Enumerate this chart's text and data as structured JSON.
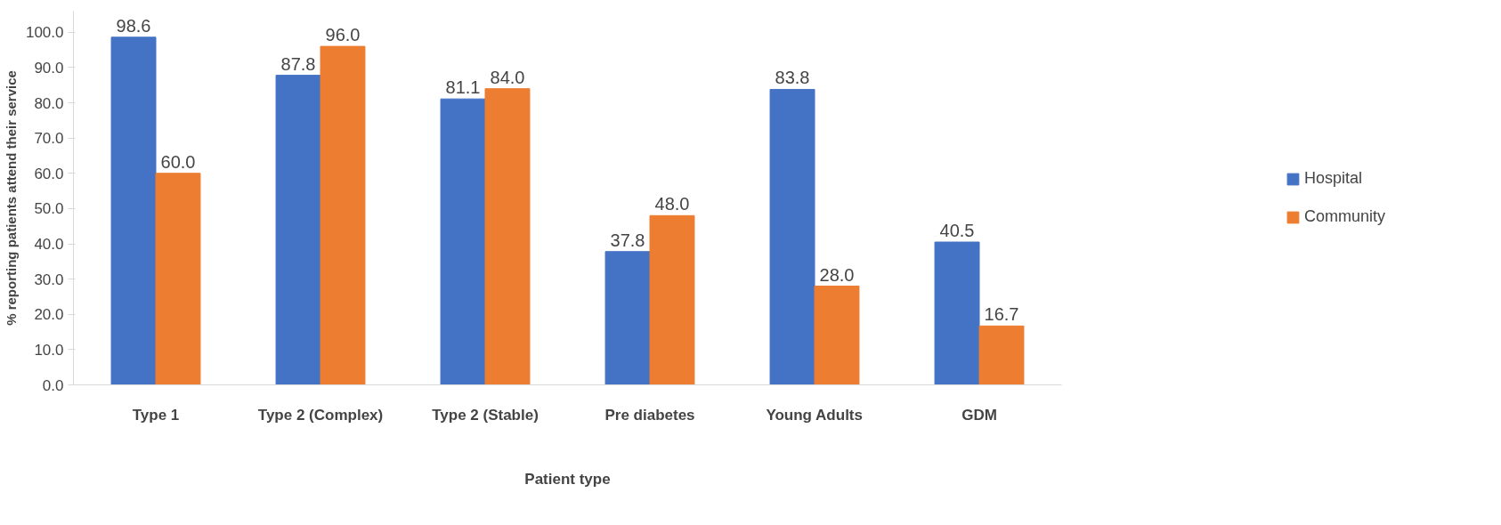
{
  "chart_data": {
    "type": "bar",
    "xlabel": "Patient type",
    "ylabel": "% reporting patients attend their service",
    "categories": [
      "Type 1",
      "Type 2 (Complex)",
      "Type 2 (Stable)",
      "Pre diabetes",
      "Young Adults",
      "GDM"
    ],
    "series": [
      {
        "name": "Hospital",
        "color": "#4472c4",
        "values": [
          98.6,
          87.8,
          81.1,
          37.8,
          83.8,
          40.5
        ],
        "value_labels": [
          "98.6",
          "87.8",
          "81.1",
          "37.8",
          "83.8",
          "40.5"
        ]
      },
      {
        "name": "Community",
        "color": "#ed7d31",
        "values": [
          60.0,
          96.0,
          84.0,
          48.0,
          28.0,
          16.7
        ],
        "value_labels": [
          "60.0",
          "96.0",
          "84.0",
          "48.0",
          "28.0",
          "16.7"
        ]
      }
    ],
    "ylim": [
      0,
      106
    ],
    "yticks": [
      {
        "value": 0,
        "label": "0.0"
      },
      {
        "value": 10,
        "label": "10.0"
      },
      {
        "value": 20,
        "label": "20.0"
      },
      {
        "value": 30,
        "label": "30.0"
      },
      {
        "value": 40,
        "label": "40.0"
      },
      {
        "value": 50,
        "label": "50.0"
      },
      {
        "value": 60,
        "label": "60.0"
      },
      {
        "value": 70,
        "label": "70.0"
      },
      {
        "value": 80,
        "label": "80.0"
      },
      {
        "value": 90,
        "label": "90.0"
      },
      {
        "value": 100,
        "label": "100.0"
      }
    ],
    "grid": false,
    "legend": "right"
  }
}
